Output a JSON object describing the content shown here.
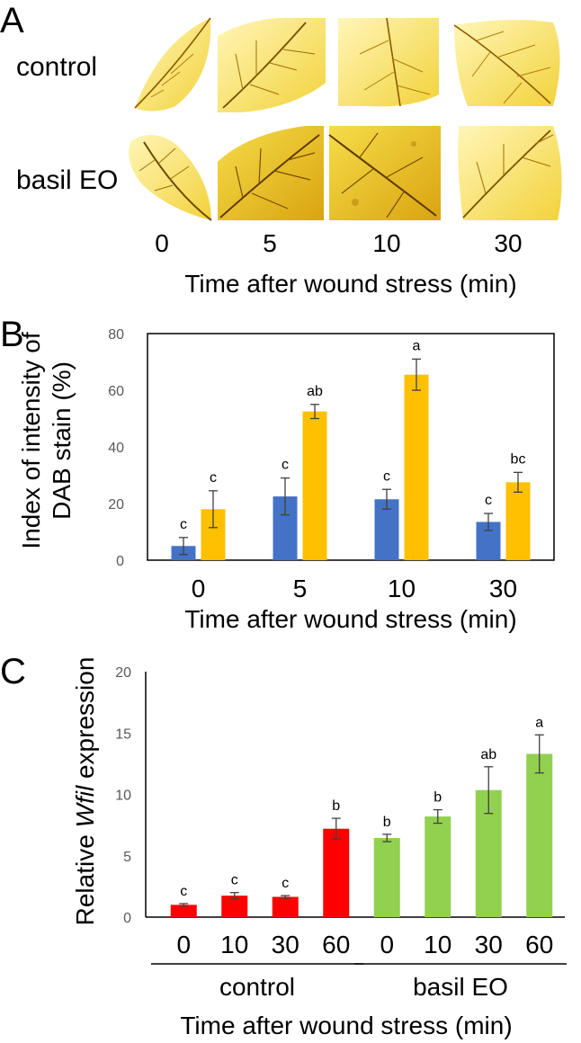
{
  "panel_a": {
    "letter": "A",
    "row_labels": [
      "control",
      "basil EO"
    ],
    "time_labels": [
      "0",
      "5",
      "10",
      "30"
    ],
    "xlabel": "Time after wound stress (min)"
  },
  "chart_data": [
    {
      "panel": "B",
      "type": "bar",
      "title": "",
      "categories": [
        "0",
        "5",
        "10",
        "30"
      ],
      "series": [
        {
          "name": "control",
          "color": "#4472C4",
          "values": [
            5,
            22.5,
            21.5,
            13.5
          ],
          "errors": [
            3,
            6.5,
            3.5,
            3
          ],
          "letters": [
            "c",
            "c",
            "c",
            "c"
          ]
        },
        {
          "name": "basil EO",
          "color": "#FFC000",
          "values": [
            18,
            52.5,
            65.5,
            27.5
          ],
          "errors": [
            6.5,
            2.5,
            5.5,
            3.5
          ],
          "letters": [
            "c",
            "ab",
            "a",
            "bc"
          ]
        }
      ],
      "ylabel_lines": [
        "Index of intensity of",
        "DAB stain (%)"
      ],
      "xlabel": "Time after wound stress (min)",
      "ylim": [
        0,
        80
      ],
      "yticks": [
        0,
        20,
        40,
        60,
        80
      ],
      "grid": false,
      "legend": "none"
    },
    {
      "panel": "C",
      "type": "bar",
      "title": "",
      "categories": [
        "0",
        "10",
        "30",
        "60",
        "0",
        "10",
        "30",
        "60"
      ],
      "groups": [
        {
          "name": "control",
          "start": 0,
          "end": 3
        },
        {
          "name": "basil EO",
          "start": 4,
          "end": 7
        }
      ],
      "values": [
        1.0,
        1.75,
        1.65,
        7.2,
        6.45,
        8.2,
        10.35,
        13.3
      ],
      "errors": [
        0.1,
        0.25,
        0.1,
        0.85,
        0.3,
        0.55,
        1.9,
        1.55
      ],
      "colors": [
        "#FF0000",
        "#FF0000",
        "#FF0000",
        "#FF0000",
        "#92D050",
        "#92D050",
        "#92D050",
        "#92D050"
      ],
      "letters": [
        "c",
        "c",
        "c",
        "b",
        "b",
        "b",
        "ab",
        "a"
      ],
      "ylabel_prefix": "Relative ",
      "ylabel_gene": "Wfil",
      "ylabel_suffix": " expression",
      "xlabel": "Time after wound stress (min)",
      "ylim": [
        0,
        20
      ],
      "yticks": [
        0,
        5,
        10,
        15,
        20
      ],
      "grid": false,
      "legend": "none"
    }
  ]
}
